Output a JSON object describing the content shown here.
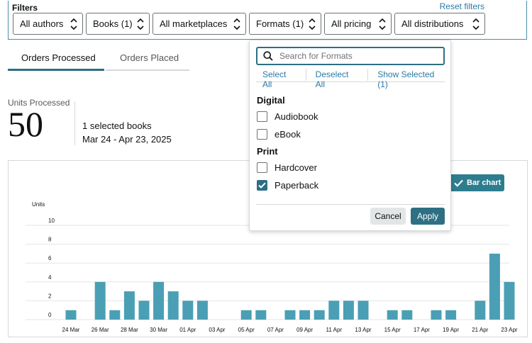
{
  "filters": {
    "title": "Filters",
    "reset_label": "Reset filters",
    "chips": [
      {
        "label": "All authors"
      },
      {
        "label": "Books (1)"
      },
      {
        "label": "All marketplaces"
      },
      {
        "label": "Formats (1)"
      },
      {
        "label": "All pricing"
      },
      {
        "label": "All distributions"
      }
    ]
  },
  "tabs": [
    {
      "label": "Orders Processed",
      "active": true
    },
    {
      "label": "Orders Placed",
      "active": false
    }
  ],
  "metric": {
    "label": "Units Processed",
    "value": "50",
    "selection": "1 selected books",
    "date_range": "Mar 24 - Apr 23, 2025"
  },
  "chart_toggle": {
    "label": "Bar chart",
    "icon": "check-icon"
  },
  "formats_dropdown": {
    "search_placeholder": "Search for Formats",
    "select_all": "Select All",
    "deselect_all": "Deselect All",
    "show_selected": "Show Selected (1)",
    "groups": [
      {
        "label": "Digital",
        "options": [
          {
            "label": "Audiobook",
            "checked": false
          },
          {
            "label": "eBook",
            "checked": false
          }
        ]
      },
      {
        "label": "Print",
        "options": [
          {
            "label": "Hardcover",
            "checked": false
          },
          {
            "label": "Paperback",
            "checked": true
          }
        ]
      }
    ],
    "cancel_label": "Cancel",
    "apply_label": "Apply"
  },
  "colors": {
    "accent": "#2e6f84",
    "bar": "#4a9fb5",
    "link": "#2a7aa5"
  },
  "chart_data": {
    "type": "bar",
    "ylabel": "Units",
    "ylim": [
      0,
      10
    ],
    "y_ticks": [
      0,
      2,
      4,
      6,
      8,
      10
    ],
    "x_tick_labels": [
      "24 Mar",
      "26 Mar",
      "28 Mar",
      "30 Mar",
      "01 Apr",
      "03 Apr",
      "05 Apr",
      "07 Apr",
      "09 Apr",
      "11 Apr",
      "13 Apr",
      "15 Apr",
      "17 Apr",
      "19 Apr",
      "21 Apr",
      "23 Apr"
    ],
    "categories": [
      "24 Mar",
      "25 Mar",
      "26 Mar",
      "27 Mar",
      "28 Mar",
      "29 Mar",
      "30 Mar",
      "31 Mar",
      "01 Apr",
      "02 Apr",
      "03 Apr",
      "04 Apr",
      "05 Apr",
      "06 Apr",
      "07 Apr",
      "08 Apr",
      "09 Apr",
      "10 Apr",
      "11 Apr",
      "12 Apr",
      "13 Apr",
      "14 Apr",
      "15 Apr",
      "16 Apr",
      "17 Apr",
      "18 Apr",
      "19 Apr",
      "20 Apr",
      "21 Apr",
      "22 Apr",
      "23 Apr"
    ],
    "values": [
      1,
      0,
      4,
      1,
      3,
      2,
      4,
      3,
      2,
      2,
      0,
      0,
      1,
      1,
      0,
      1,
      1,
      1,
      2,
      2,
      2,
      0,
      1,
      1,
      0,
      1,
      1,
      0,
      2,
      7,
      4
    ]
  }
}
